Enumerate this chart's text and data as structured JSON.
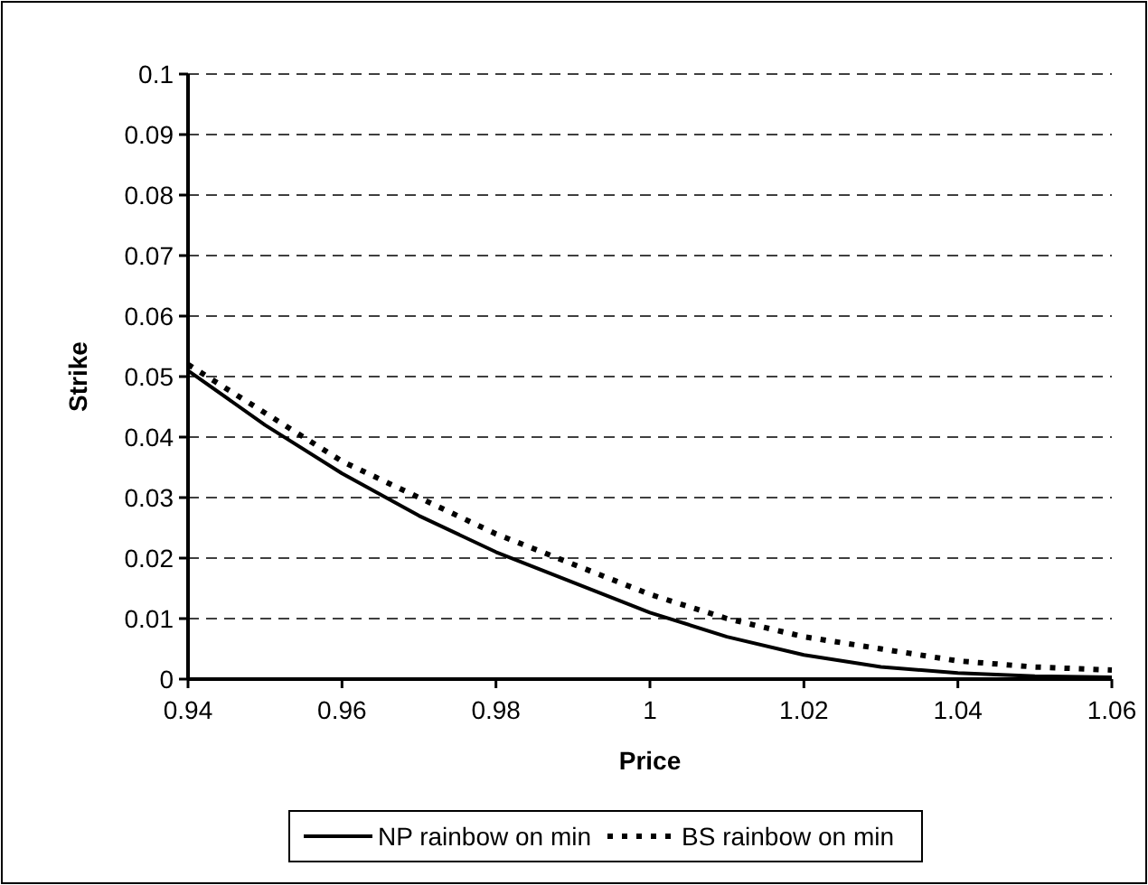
{
  "chart_data": {
    "type": "line",
    "xlabel": "Price",
    "ylabel": "Strike",
    "xlim": [
      0.94,
      1.06
    ],
    "xticks": [
      0.94,
      0.96,
      0.98,
      1,
      1.02,
      1.04,
      1.06
    ],
    "ylim": [
      0,
      0.1
    ],
    "yticks": [
      0,
      0.01,
      0.02,
      0.03,
      0.04,
      0.05,
      0.06,
      0.07,
      0.08,
      0.09,
      0.1
    ],
    "grid": "y",
    "legend": "bottom",
    "series": [
      {
        "name": "NP rainbow on min",
        "color": "#000000",
        "line_style": "solid",
        "x": [
          0.94,
          0.95,
          0.96,
          0.97,
          0.98,
          0.99,
          1,
          1.01,
          1.02,
          1.03,
          1.04,
          1.05,
          1.06
        ],
        "values": [
          0.051,
          0.042,
          0.034,
          0.027,
          0.021,
          0.016,
          0.011,
          0.007,
          0.004,
          0.002,
          0.001,
          0.0005,
          0.0003
        ]
      },
      {
        "name": "BS rainbow on min",
        "color": "#000000",
        "line_style": "dotted",
        "x": [
          0.94,
          0.95,
          0.96,
          0.97,
          0.98,
          0.99,
          1,
          1.01,
          1.02,
          1.03,
          1.04,
          1.05,
          1.06
        ],
        "values": [
          0.052,
          0.044,
          0.036,
          0.03,
          0.024,
          0.019,
          0.014,
          0.01,
          0.007,
          0.005,
          0.003,
          0.002,
          0.0015
        ]
      }
    ]
  }
}
